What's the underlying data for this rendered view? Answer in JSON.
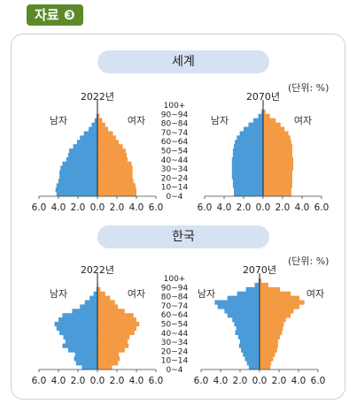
{
  "badge": {
    "label": "자료 ❸"
  },
  "sections": [
    {
      "title": "세계",
      "unit": "(단위: %)"
    },
    {
      "title": "한국",
      "unit": "(단위: %)"
    }
  ],
  "age_groups": [
    "0~4",
    "10~14",
    "20~24",
    "30~34",
    "40~44",
    "50~54",
    "60~64",
    "70~74",
    "80~84",
    "90~94",
    "100+"
  ],
  "colors": {
    "male": "#4a9bd8",
    "female": "#f39a43",
    "pill": "#d6e2f1",
    "badge": "#5c8a2a"
  },
  "chart_data": [
    {
      "type": "population_pyramid",
      "region": "세계",
      "year": "2022년",
      "left_label": "남자",
      "right_label": "여자",
      "x_ticks": [
        "6.0",
        "4.0",
        "2.0",
        "0.0",
        "2.0",
        "4.0",
        "6.0"
      ],
      "xlim": [
        -6,
        6
      ],
      "age_groups_bottom_to_top": [
        "0~4",
        "5~9",
        "10~14",
        "15~19",
        "20~24",
        "25~29",
        "30~34",
        "35~39",
        "40~44",
        "45~49",
        "50~54",
        "55~59",
        "60~64",
        "65~69",
        "70~74",
        "75~79",
        "80~84",
        "85~89",
        "90~94",
        "95~99",
        "100+"
      ],
      "male": [
        4.2,
        4.3,
        4.2,
        4.0,
        3.9,
        3.9,
        3.8,
        3.6,
        3.2,
        3.0,
        2.9,
        2.5,
        2.1,
        1.8,
        1.4,
        0.9,
        0.6,
        0.3,
        0.1,
        0.05,
        0.02
      ],
      "female": [
        4.0,
        4.0,
        3.9,
        3.7,
        3.6,
        3.6,
        3.6,
        3.5,
        3.1,
        3.0,
        2.9,
        2.6,
        2.2,
        1.9,
        1.6,
        1.1,
        0.8,
        0.5,
        0.2,
        0.05,
        0.02
      ]
    },
    {
      "type": "population_pyramid",
      "region": "세계",
      "year": "2070년",
      "left_label": "남자",
      "right_label": "여자",
      "x_ticks": [
        "6.0",
        "4.0",
        "2.0",
        "0.0",
        "2.0",
        "4.0",
        "6.0"
      ],
      "xlim": [
        -6,
        6
      ],
      "age_groups_bottom_to_top": [
        "0~4",
        "5~9",
        "10~14",
        "15~19",
        "20~24",
        "25~29",
        "30~34",
        "35~39",
        "40~44",
        "45~49",
        "50~54",
        "55~59",
        "60~64",
        "65~69",
        "70~74",
        "75~79",
        "80~84",
        "85~89",
        "90~94",
        "95~99",
        "100+"
      ],
      "male": [
        3.0,
        3.0,
        3.1,
        3.1,
        3.2,
        3.2,
        3.2,
        3.2,
        3.2,
        3.1,
        3.1,
        3.0,
        2.9,
        2.7,
        2.4,
        2.0,
        1.5,
        1.0,
        0.5,
        0.15,
        0.03
      ],
      "female": [
        2.9,
        2.9,
        3.0,
        3.0,
        3.0,
        3.0,
        3.1,
        3.1,
        3.1,
        3.0,
        3.0,
        3.0,
        2.9,
        2.8,
        2.6,
        2.2,
        1.8,
        1.3,
        0.7,
        0.25,
        0.05
      ]
    },
    {
      "type": "population_pyramid",
      "region": "한국",
      "year": "2022년",
      "left_label": "남자",
      "right_label": "여자",
      "x_ticks": [
        "6.0",
        "4.0",
        "2.0",
        "0.0",
        "2.0",
        "4.0",
        "6.0"
      ],
      "xlim": [
        -6,
        6
      ],
      "age_groups_bottom_to_top": [
        "0~4",
        "5~9",
        "10~14",
        "15~19",
        "20~24",
        "25~29",
        "30~34",
        "35~39",
        "40~44",
        "45~49",
        "50~54",
        "55~59",
        "60~64",
        "65~69",
        "70~74",
        "75~79",
        "80~84",
        "85~89",
        "90~94",
        "95~99",
        "100+"
      ],
      "male": [
        1.6,
        2.2,
        2.4,
        2.3,
        3.0,
        3.6,
        3.3,
        3.5,
        3.9,
        4.2,
        4.4,
        4.0,
        3.6,
        2.6,
        1.8,
        1.3,
        0.8,
        0.4,
        0.1,
        0.03,
        0.01
      ],
      "female": [
        1.5,
        2.1,
        2.3,
        2.2,
        2.8,
        3.2,
        3.1,
        3.3,
        3.8,
        4.0,
        4.3,
        4.0,
        3.7,
        2.8,
        2.1,
        1.8,
        1.3,
        0.8,
        0.3,
        0.08,
        0.02
      ]
    },
    {
      "type": "population_pyramid",
      "region": "한국",
      "year": "2070년",
      "left_label": "남자",
      "right_label": "여자",
      "x_ticks": [
        "6.0",
        "4.0",
        "2.0",
        "0.0",
        "2.0",
        "4.0",
        "6.0"
      ],
      "xlim": [
        -6,
        6
      ],
      "age_groups_bottom_to_top": [
        "0~4",
        "5~9",
        "10~14",
        "15~19",
        "20~24",
        "25~29",
        "30~34",
        "35~39",
        "40~44",
        "45~49",
        "50~54",
        "55~59",
        "60~64",
        "65~69",
        "70~74",
        "75~79",
        "80~84",
        "85~89",
        "90~94",
        "95~99",
        "100+"
      ],
      "male": [
        1.1,
        1.3,
        1.5,
        1.7,
        1.9,
        2.1,
        2.0,
        2.2,
        2.5,
        2.4,
        2.6,
        2.8,
        3.3,
        3.6,
        4.3,
        4.6,
        3.3,
        2.3,
        1.4,
        0.5,
        0.1
      ],
      "female": [
        1.1,
        1.2,
        1.4,
        1.6,
        1.8,
        1.9,
        1.9,
        2.1,
        2.3,
        2.4,
        2.5,
        2.7,
        3.2,
        3.5,
        4.1,
        4.6,
        4.1,
        3.2,
        2.1,
        0.9,
        0.2
      ]
    }
  ]
}
